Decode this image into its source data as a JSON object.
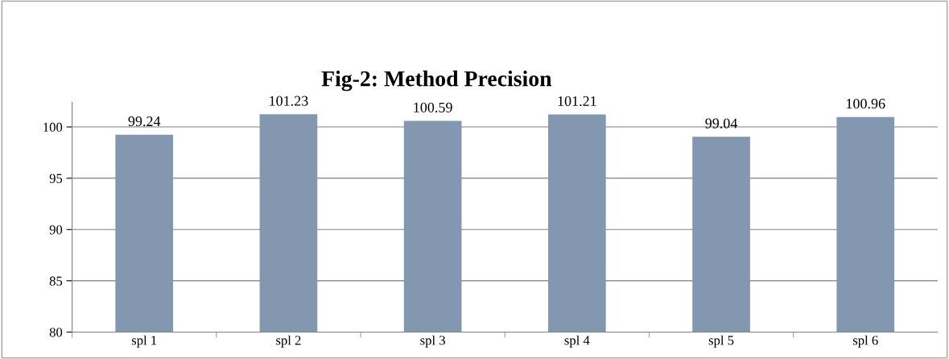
{
  "chart_data": {
    "type": "bar",
    "title": "Fig-2: Method Precision",
    "categories": [
      "spl 1",
      "spl 2",
      "spl 3",
      "spl 4",
      "spl 5",
      "spl 6"
    ],
    "values": [
      99.24,
      101.23,
      100.59,
      101.21,
      99.04,
      100.96
    ],
    "color": "#8497b0",
    "ylim": [
      80,
      102.4
    ],
    "yticks": [
      80,
      85,
      90,
      95,
      100
    ],
    "grid": "y",
    "data_labels": true
  }
}
